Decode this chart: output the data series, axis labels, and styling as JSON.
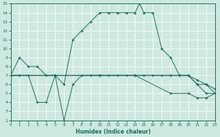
{
  "xlabel": "Humidex (Indice chaleur)",
  "xlim": [
    0,
    23
  ],
  "ylim": [
    2,
    15
  ],
  "xticks": [
    0,
    1,
    2,
    3,
    4,
    5,
    6,
    7,
    8,
    9,
    10,
    11,
    12,
    13,
    14,
    15,
    16,
    17,
    18,
    19,
    20,
    21,
    22,
    23
  ],
  "yticks": [
    2,
    3,
    4,
    5,
    6,
    7,
    8,
    9,
    10,
    11,
    12,
    13,
    14,
    15
  ],
  "bg_color": "#cce8e0",
  "grid_color": "#ffffff",
  "line_color": "#1a6b5a",
  "line1_x": [
    0,
    1,
    2,
    3,
    4,
    5,
    6,
    7,
    8,
    9,
    10,
    11,
    12,
    13,
    14,
    14.5,
    15,
    16,
    17,
    18,
    19,
    20,
    21,
    22,
    23
  ],
  "line1_y": [
    7,
    9,
    8,
    8,
    7,
    7,
    6,
    11,
    12,
    13,
    14,
    14,
    14,
    14,
    14,
    15,
    14,
    14,
    10,
    9,
    7,
    7,
    6,
    6,
    5
  ],
  "line2_x": [
    0,
    1,
    2,
    3,
    4,
    5,
    6,
    7,
    8,
    9,
    10,
    11,
    12,
    13,
    14,
    15,
    16,
    17,
    18,
    19,
    20,
    21,
    22,
    23
  ],
  "line2_y": [
    7,
    7,
    7,
    4,
    4,
    7,
    2,
    6,
    7,
    7,
    7,
    7,
    7,
    7,
    7,
    7,
    7,
    7,
    7,
    7,
    7,
    6,
    5,
    5
  ],
  "line3_x": [
    0,
    5,
    10,
    14,
    18,
    20,
    21,
    22,
    23
  ],
  "line3_y": [
    7,
    7,
    7,
    7,
    7,
    7,
    6.5,
    6,
    5.5
  ],
  "line4_x": [
    0,
    5,
    10,
    14,
    18,
    20,
    21,
    22,
    23
  ],
  "line4_y": [
    7,
    7,
    7,
    7,
    5,
    5,
    4.5,
    4.5,
    5
  ]
}
